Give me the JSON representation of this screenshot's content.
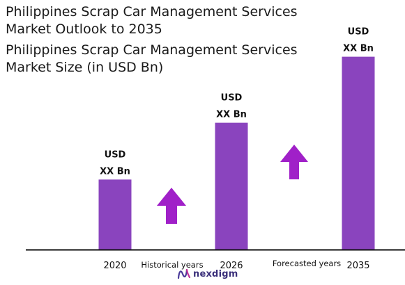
{
  "header": {
    "title_line1": "Philippines Scrap Car Management Services",
    "title_line2": "Market Outlook to 2035",
    "subtitle_line1": "Philippines Scrap Car Management Services",
    "subtitle_line2": "Market Size (in USD Bn)"
  },
  "colors": {
    "bar": "#8a44be",
    "arrow": "#a020c8",
    "axis": "#111111",
    "text": "#111111",
    "logo": "#3a2f7a"
  },
  "chart_data": {
    "type": "bar",
    "title": "Philippines Scrap Car Management Services Market Size (in USD Bn)",
    "categories": [
      "2020",
      "2026",
      "2035"
    ],
    "values": [
      0.53,
      0.96,
      1.46
    ],
    "value_labels": [
      [
        "USD",
        "XX Bn"
      ],
      [
        "USD",
        "XX Bn"
      ],
      [
        "USD",
        "XX Bn"
      ]
    ],
    "period_labels": [
      "Historical years",
      "Forecasted years"
    ],
    "annotations": [
      "growth-arrow",
      "growth-arrow"
    ],
    "ylim": [
      0,
      1.6
    ],
    "grid": false,
    "legend": "none"
  },
  "footer": {
    "logo_text": "nexdigm",
    "logo_icon": "nexdigm-logo-icon"
  }
}
